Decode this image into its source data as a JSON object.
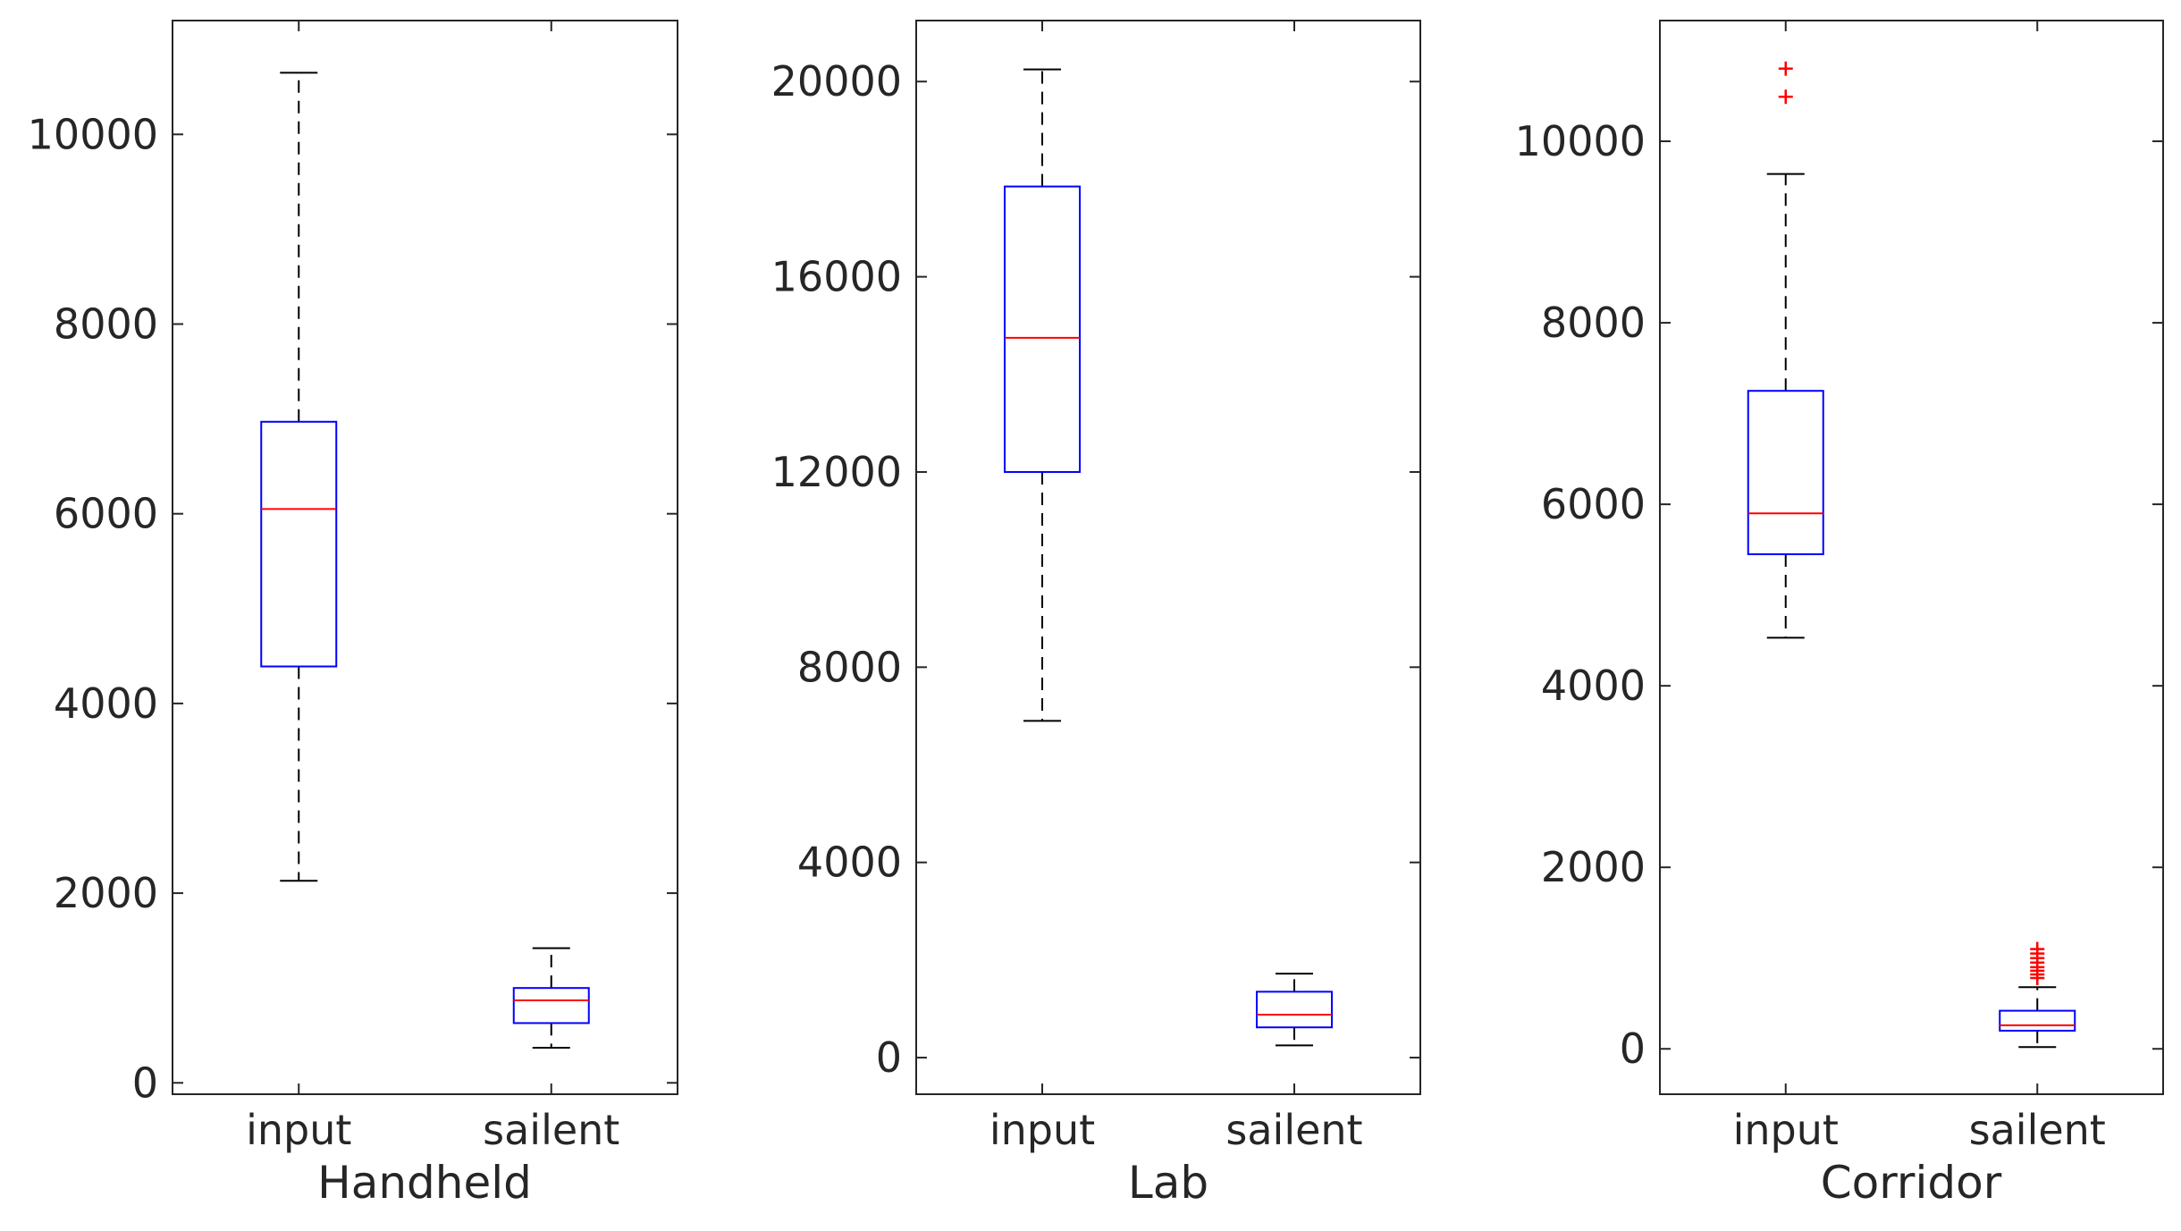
{
  "colors": {
    "box": "#0000ff",
    "median": "#ff0000",
    "whisker": "#000000",
    "outlier": "#ff0000",
    "axes": "#262626"
  },
  "chart_data": [
    {
      "type": "box",
      "xlabel": "Handheld",
      "ylabel": "",
      "categories": [
        "input",
        "sailent"
      ],
      "ylim": [
        -120,
        11200
      ],
      "yticks": [
        0,
        2000,
        4000,
        6000,
        8000,
        10000
      ],
      "ytick_labels": [
        "0",
        "2000",
        "4000",
        "6000",
        "8000",
        "10000"
      ],
      "boxes": [
        {
          "label": "input",
          "min": 2130,
          "q1": 4390,
          "median": 6050,
          "q3": 6970,
          "max": 10650,
          "outliers": []
        },
        {
          "label": "sailent",
          "min": 370,
          "q1": 630,
          "median": 870,
          "q3": 1000,
          "max": 1420,
          "outliers": []
        }
      ]
    },
    {
      "type": "box",
      "xlabel": "Lab",
      "ylabel": "",
      "categories": [
        "input",
        "sailent"
      ],
      "ylim": [
        -750,
        21250
      ],
      "yticks": [
        0,
        4000,
        8000,
        12000,
        16000,
        20000
      ],
      "ytick_labels": [
        "0",
        "4000",
        "8000",
        "12000",
        "16000",
        "20000"
      ],
      "boxes": [
        {
          "label": "input",
          "min": 6900,
          "q1": 12000,
          "median": 14750,
          "q3": 17850,
          "max": 20250,
          "outliers": []
        },
        {
          "label": "sailent",
          "min": 250,
          "q1": 620,
          "median": 880,
          "q3": 1350,
          "max": 1720,
          "outliers": []
        }
      ]
    },
    {
      "type": "box",
      "xlabel": "Corridor",
      "ylabel": "",
      "categories": [
        "input",
        "sailent"
      ],
      "ylim": [
        -500,
        11330
      ],
      "yticks": [
        0,
        2000,
        4000,
        6000,
        8000,
        10000
      ],
      "ytick_labels": [
        "0",
        "2000",
        "4000",
        "6000",
        "8000",
        "10000"
      ],
      "boxes": [
        {
          "label": "input",
          "min": 4530,
          "q1": 5450,
          "median": 5900,
          "q3": 7250,
          "max": 9640,
          "outliers": [
            10490,
            10800
          ]
        },
        {
          "label": "sailent",
          "min": 20,
          "q1": 200,
          "median": 260,
          "q3": 420,
          "max": 680,
          "outliers": [
            780,
            820,
            860,
            900,
            950,
            1000,
            1050,
            1100
          ]
        }
      ]
    }
  ]
}
